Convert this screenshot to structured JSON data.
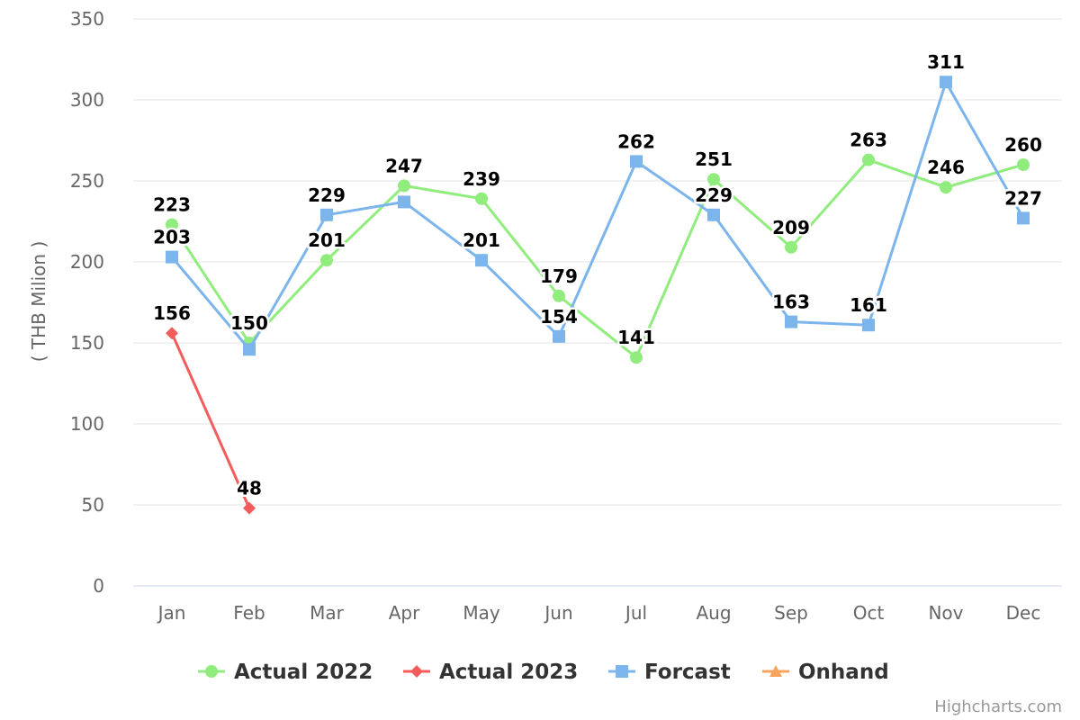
{
  "chart_data": {
    "type": "line",
    "title": "",
    "xlabel": "",
    "ylabel": "( THB Milion )",
    "ylim": [
      0,
      350
    ],
    "yticks": [
      0,
      50,
      100,
      150,
      200,
      250,
      300,
      350
    ],
    "grid": true,
    "legend_position": "bottom-center",
    "categories": [
      "Jan",
      "Feb",
      "Mar",
      "Apr",
      "May",
      "Jun",
      "Jul",
      "Aug",
      "Sep",
      "Oct",
      "Nov",
      "Dec"
    ],
    "series": [
      {
        "name": "Actual 2022",
        "color": "#90ed7d",
        "marker": "circle",
        "values": [
          223,
          150,
          201,
          247,
          239,
          179,
          141,
          251,
          209,
          263,
          246,
          260
        ]
      },
      {
        "name": "Actual 2023",
        "color": "#f45b5b",
        "marker": "diamond",
        "values": [
          156,
          48,
          null,
          null,
          null,
          null,
          null,
          null,
          null,
          null,
          null,
          null
        ]
      },
      {
        "name": "Forcast",
        "color": "#7cb5ec",
        "marker": "square",
        "values": [
          203,
          146,
          229,
          237,
          201,
          154,
          262,
          229,
          163,
          161,
          311,
          227
        ],
        "labels": [
          203,
          null,
          229,
          null,
          201,
          154,
          262,
          229,
          163,
          161,
          311,
          227
        ]
      },
      {
        "name": "Onhand",
        "color": "#f7a35c",
        "marker": "triangle",
        "values": [
          null,
          null,
          null,
          null,
          null,
          null,
          null,
          null,
          null,
          null,
          null,
          null
        ]
      }
    ]
  },
  "credits": "Highcharts.com"
}
